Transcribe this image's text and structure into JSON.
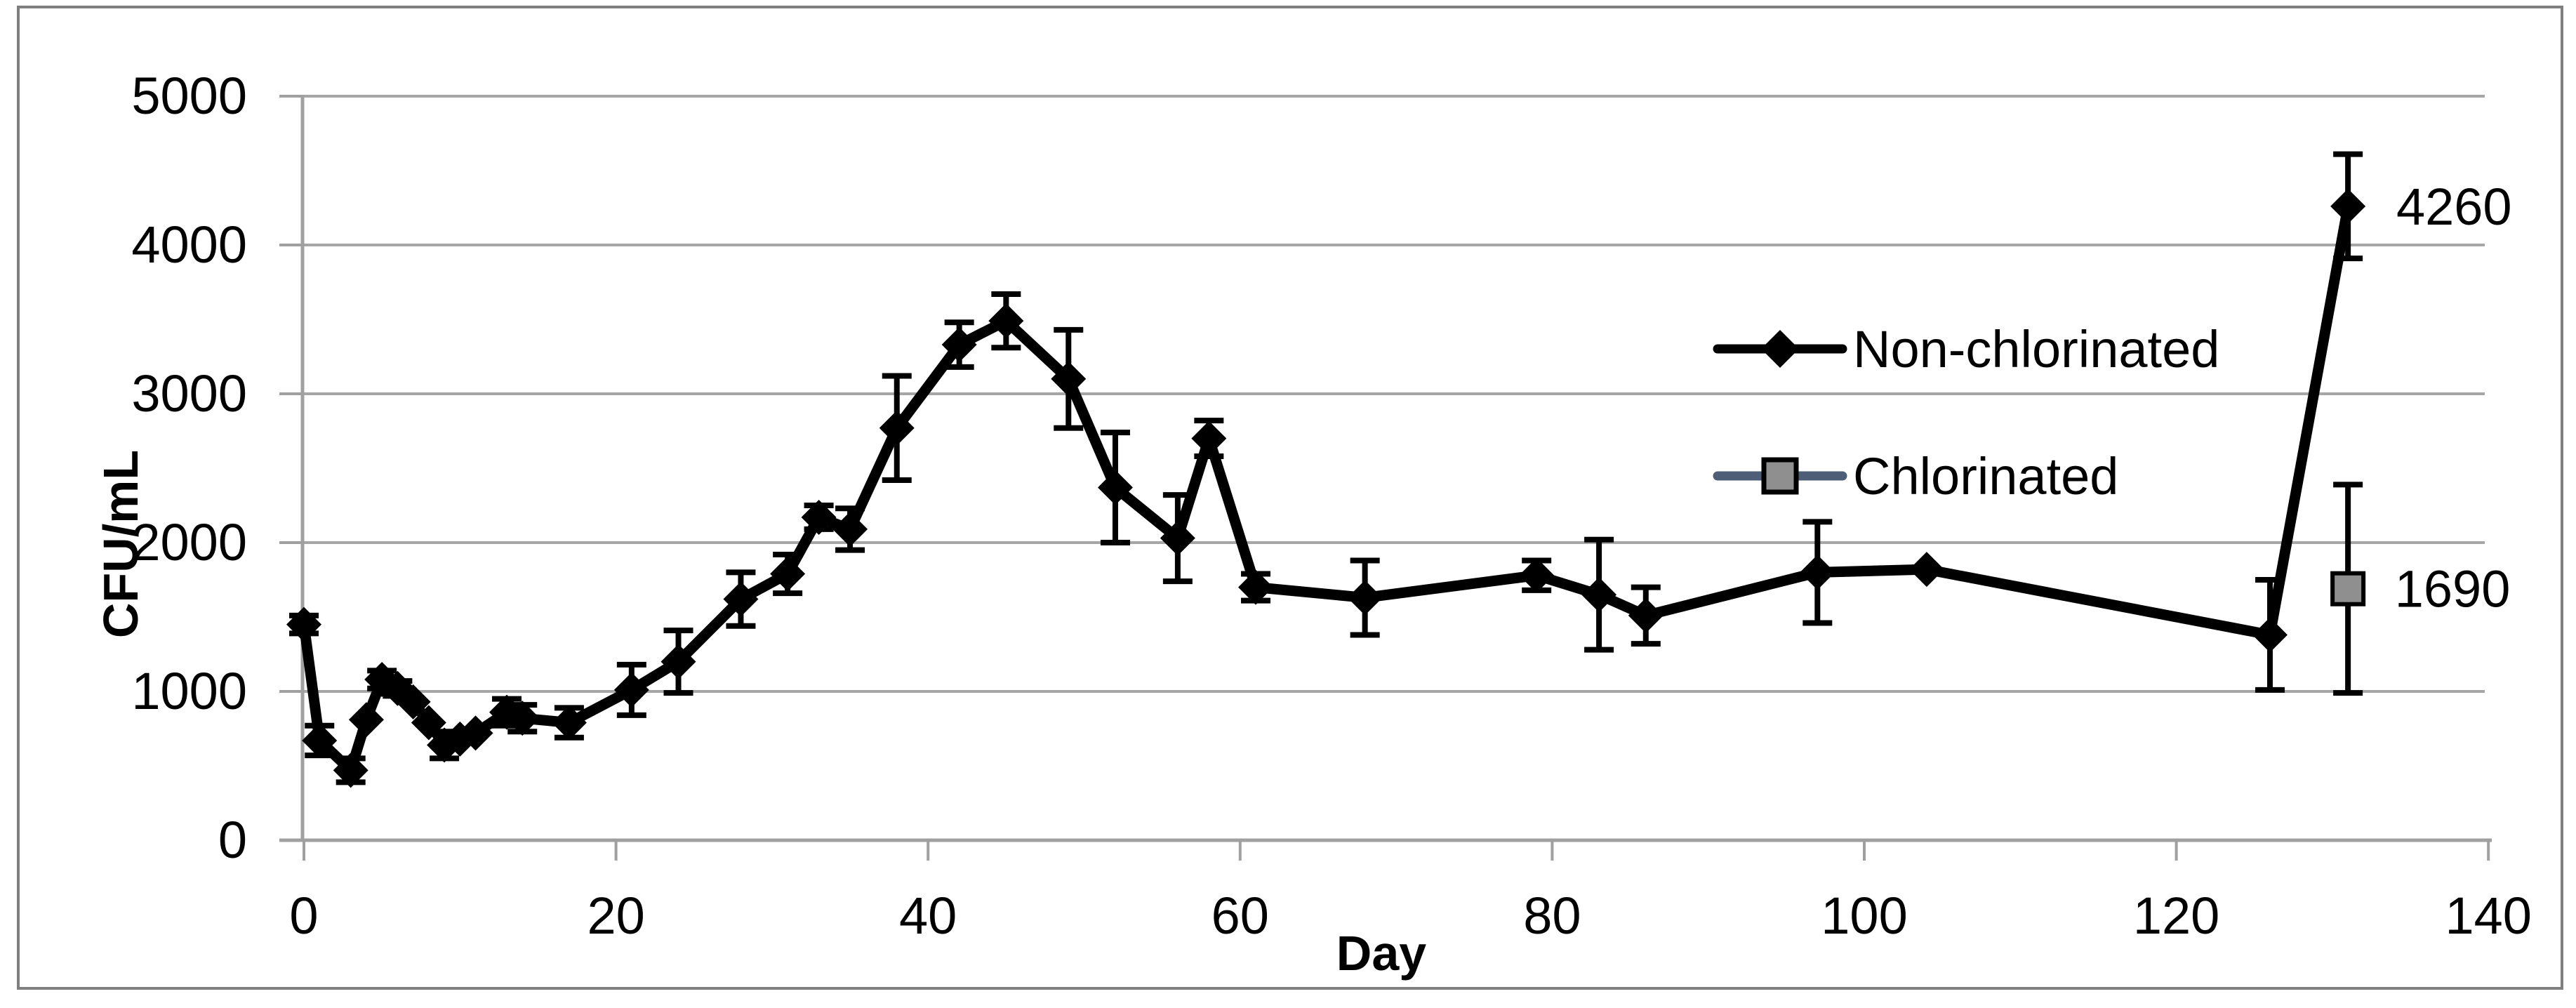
{
  "style": {
    "background": "#ffffff",
    "figure_border_color": "#7f7f7f",
    "grid_color": "#a6a6a6",
    "axis_color": "#a0a0a0",
    "error_bar_color": "#000000",
    "text_color": "#000000"
  },
  "chart_data": {
    "type": "line",
    "title": "",
    "xlabel": "Day",
    "ylabel": "CFU/mL",
    "xlim": [
      0,
      140
    ],
    "ylim": [
      0,
      5000
    ],
    "x_ticks": [
      0,
      20,
      40,
      60,
      80,
      100,
      120,
      140
    ],
    "y_ticks": [
      0,
      1000,
      2000,
      3000,
      4000,
      5000
    ],
    "grid": "horizontal-gridlines-only",
    "legend_position": "inside-right-middle",
    "error_bars": true,
    "series": [
      {
        "name": "Non-chlorinated",
        "color": "#000000",
        "marker": "diamond",
        "marker_fill": "#000000",
        "marker_stroke": "#000000",
        "connect_line": true,
        "points": [
          {
            "day": 0,
            "value": 1450,
            "err": 60
          },
          {
            "day": 1,
            "value": 670,
            "err": 100
          },
          {
            "day": 3,
            "value": 470,
            "err": 80
          },
          {
            "day": 4,
            "value": 810,
            "err": 0
          },
          {
            "day": 5,
            "value": 1080,
            "err": 60
          },
          {
            "day": 6,
            "value": 1020,
            "err": 50
          },
          {
            "day": 7,
            "value": 930,
            "err": 0
          },
          {
            "day": 8,
            "value": 790,
            "err": 0
          },
          {
            "day": 9,
            "value": 640,
            "err": 90
          },
          {
            "day": 10,
            "value": 680,
            "err": 0
          },
          {
            "day": 11,
            "value": 720,
            "err": 0
          },
          {
            "day": 13,
            "value": 860,
            "err": 90
          },
          {
            "day": 14,
            "value": 820,
            "err": 90
          },
          {
            "day": 17,
            "value": 790,
            "err": 100
          },
          {
            "day": 21,
            "value": 1010,
            "err": 170
          },
          {
            "day": 24,
            "value": 1200,
            "err": 210
          },
          {
            "day": 28,
            "value": 1620,
            "err": 180
          },
          {
            "day": 31,
            "value": 1790,
            "err": 130
          },
          {
            "day": 33,
            "value": 2170,
            "err": 80
          },
          {
            "day": 35,
            "value": 2090,
            "err": 140
          },
          {
            "day": 38,
            "value": 2770,
            "err": 350
          },
          {
            "day": 42,
            "value": 3330,
            "err": 150
          },
          {
            "day": 45,
            "value": 3490,
            "err": 180
          },
          {
            "day": 49,
            "value": 3100,
            "err": 330
          },
          {
            "day": 52,
            "value": 2370,
            "err": 370
          },
          {
            "day": 56,
            "value": 2030,
            "err": 290
          },
          {
            "day": 58,
            "value": 2700,
            "err": 120
          },
          {
            "day": 61,
            "value": 1700,
            "err": 90
          },
          {
            "day": 68,
            "value": 1630,
            "err": 250
          },
          {
            "day": 79,
            "value": 1780,
            "err": 100
          },
          {
            "day": 83,
            "value": 1650,
            "err": 370
          },
          {
            "day": 86,
            "value": 1510,
            "err": 190
          },
          {
            "day": 97,
            "value": 1800,
            "err": 340
          },
          {
            "day": 104,
            "value": 1820,
            "err": 0
          },
          {
            "day": 126,
            "value": 1380,
            "err": 370
          },
          {
            "day": 131,
            "value": 4260,
            "err": 350
          }
        ]
      },
      {
        "name": "Chlorinated",
        "color": "#4e5e76",
        "marker": "square",
        "marker_fill": "#8f8f8f",
        "marker_stroke": "#000000",
        "connect_line": false,
        "points": [
          {
            "day": 131,
            "value": 1690,
            "err": 700
          }
        ]
      }
    ],
    "annotations": [
      {
        "text": "4260",
        "day": 137.8,
        "value": 4260
      },
      {
        "text": "1690",
        "day": 137.7,
        "value": 1690
      }
    ]
  }
}
